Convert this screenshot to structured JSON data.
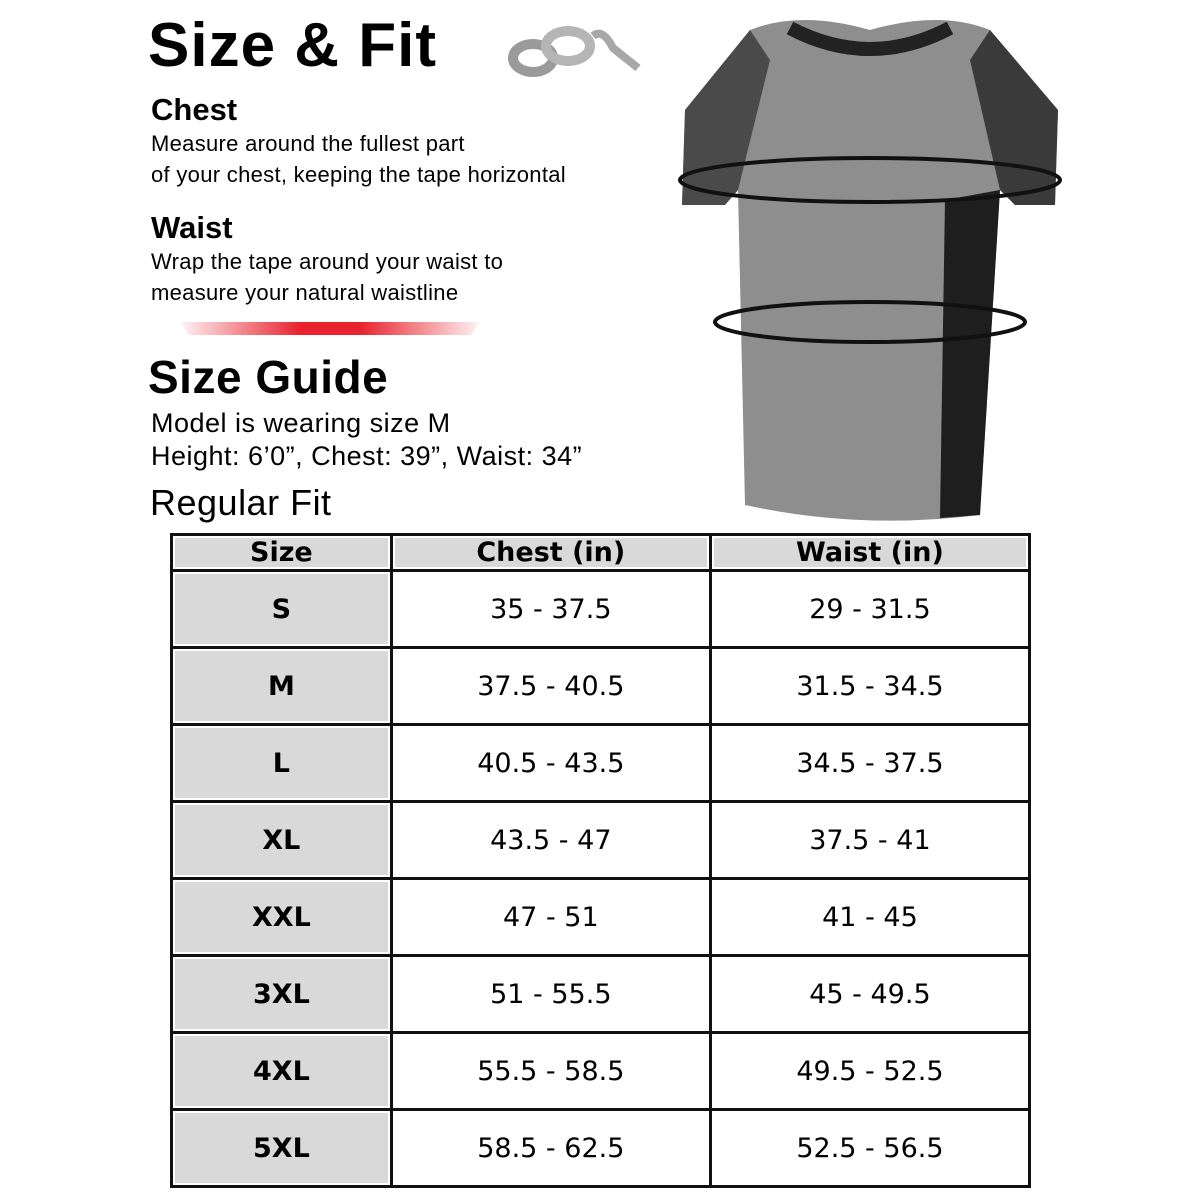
{
  "title": "Size & Fit",
  "chest": {
    "heading": "Chest",
    "line1": "Measure around the fullest part",
    "line2": "of your chest, keeping the tape horizontal"
  },
  "waist": {
    "heading": "Waist",
    "line1": "Wrap the tape around your waist to",
    "line2": "measure your natural waistline"
  },
  "accent_color": "#e8232f",
  "size_guide": {
    "title": "Size Guide",
    "model_line1": "Model is wearing size M",
    "model_line2": "Height: 6’0”, Chest: 39”, Waist: 34”",
    "fit": "Regular Fit"
  },
  "table": {
    "headers": [
      "Size",
      "Chest (in)",
      "Waist (in)"
    ],
    "rows": [
      [
        "S",
        "35 - 37.5",
        "29 - 31.5"
      ],
      [
        "M",
        "37.5 - 40.5",
        "31.5 - 34.5"
      ],
      [
        "L",
        "40.5 - 43.5",
        "34.5 - 37.5"
      ],
      [
        "XL",
        "43.5 - 47",
        "37.5 - 41"
      ],
      [
        "XXL",
        "47 - 51",
        "41 - 45"
      ],
      [
        "3XL",
        "51 - 55.5",
        "45 - 49.5"
      ],
      [
        "4XL",
        "55.5 - 58.5",
        "49.5 - 52.5"
      ],
      [
        "5XL",
        "58.5 - 62.5",
        "52.5 - 56.5"
      ]
    ]
  }
}
